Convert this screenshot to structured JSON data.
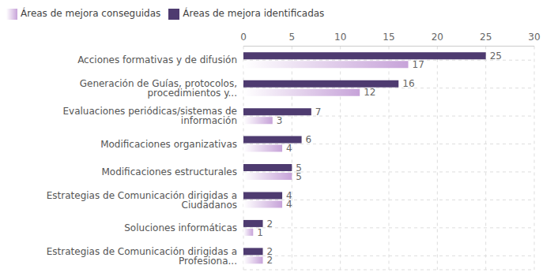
{
  "chart_data": {
    "type": "bar",
    "orientation": "horizontal",
    "categories": [
      "Acciones formativas y de difusión",
      "Generación de Guías, protocolos, procedimientos y...",
      "Evaluaciones periódicas/sistemas de información",
      "Modificaciones organizativas",
      "Modificaciones estructurales",
      "Estrategias de Comunicación dirigidas a Ciudadanos",
      "Soluciones informáticas",
      "Estrategias de Comunicación dirigidas a Profesiona..."
    ],
    "series": [
      {
        "name": "Áreas de mejora identificadas",
        "color": "#4e3b70",
        "values": [
          25,
          16,
          7,
          6,
          5,
          4,
          2,
          2
        ]
      },
      {
        "name": "Áreas de mejora conseguidas",
        "color": "#c7a3d9",
        "values": [
          17,
          12,
          3,
          4,
          5,
          4,
          1,
          2
        ]
      }
    ],
    "xlim": [
      0,
      30
    ],
    "xticks": [
      0,
      5,
      10,
      15,
      20,
      25,
      30
    ],
    "grid": true,
    "legend": "top-left",
    "data_labels": true
  }
}
